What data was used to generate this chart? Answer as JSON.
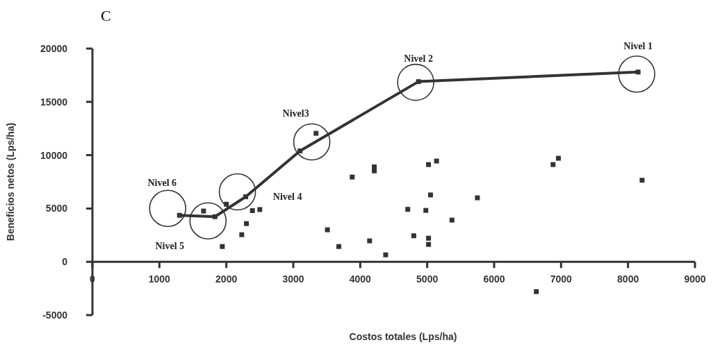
{
  "chart_data": {
    "type": "scatter",
    "title": "C",
    "xlabel": "Costos totales (Lps/ha)",
    "ylabel": "Beneficios netos (Lps/ha)",
    "xlim": [
      0,
      9000
    ],
    "ylim": [
      -5000,
      20000
    ],
    "xticks": [
      0,
      1000,
      2000,
      3000,
      4000,
      5000,
      6000,
      7000,
      8000,
      9000
    ],
    "yticks": [
      -5000,
      0,
      5000,
      10000,
      15000,
      20000
    ],
    "grid": false,
    "marker": "square",
    "series": [
      {
        "type": "line",
        "color": "#333333",
        "line_style": "solid",
        "x": [
          1300,
          1830,
          2290,
          3100,
          4870,
          8150
        ],
        "values": [
          4360,
          4230,
          6100,
          10400,
          16900,
          17800
        ]
      },
      {
        "color": "#333333",
        "x": [
          1660,
          2000,
          2390,
          2500,
          2300,
          2230,
          1940,
          3510,
          3680,
          3880,
          4140,
          3340,
          4210,
          4210,
          5020,
          5140,
          6880,
          6960,
          8210,
          5050,
          5750,
          4710,
          4980,
          5370,
          4800,
          5020,
          5020,
          4380,
          6630
        ],
        "values": [
          4760,
          5400,
          4800,
          4900,
          3580,
          2540,
          1430,
          3000,
          1430,
          7950,
          1960,
          12050,
          8530,
          8900,
          9120,
          9450,
          9120,
          9710,
          7650,
          6270,
          6000,
          4920,
          4820,
          3910,
          2440,
          2210,
          1630,
          650,
          -2800
        ]
      }
    ],
    "annotations": [
      "Nivel 6",
      "Nivel 5",
      "Nivel 4",
      "Nivel3",
      "Nivel 2",
      "Nivel 1"
    ]
  }
}
